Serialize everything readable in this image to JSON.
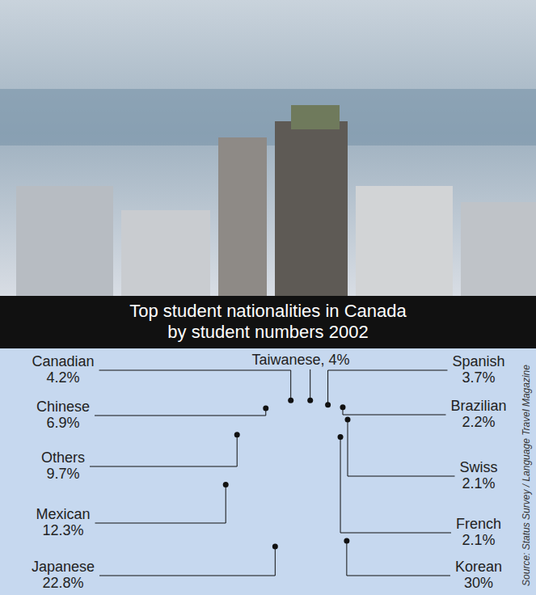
{
  "chart_data": {
    "type": "pie",
    "title": "Top student nationalities in Canada\nby student numbers 2002",
    "categories": [
      "Taiwanese,",
      "Spanish",
      "Brazilian",
      "Swiss",
      "French",
      "Korean",
      "Japanese",
      "Mexican",
      "Others",
      "Chinese",
      "Canadian"
    ],
    "values": [
      4,
      3.7,
      2.2,
      2.1,
      2.1,
      30,
      22.8,
      12.3,
      9.7,
      6.9,
      4.2
    ],
    "value_labels": [
      "4%",
      "3.7%",
      "2.2%",
      "2.1%",
      "2.1%",
      "30%",
      "22.8%",
      "12.3%",
      "9.7%",
      "6.9%",
      "4.2%"
    ],
    "colors": [
      "#c5d6ef",
      "#2a6ebf",
      "#cbdaf1",
      "#1b62b1",
      "#6e92d2",
      "#1f66b6",
      "#6c93d3",
      "#d6e2f3",
      "#2c73c2",
      "#cddcf1",
      "#1a64b4"
    ],
    "data_labels": true,
    "source": "Source: Status Survey / Language Travel Magazine"
  }
}
